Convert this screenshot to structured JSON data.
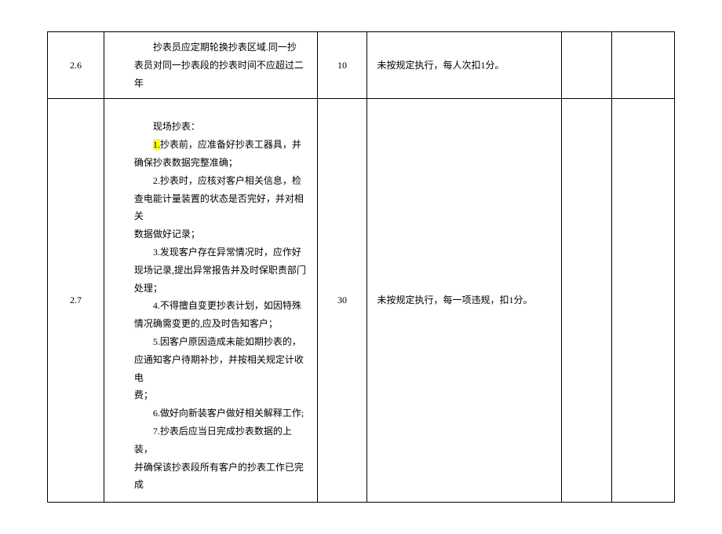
{
  "table": {
    "rows": [
      {
        "num": "2.6",
        "desc_lines": [
          "　　抄表员应定期轮换抄表区域.同一抄",
          "表员对同一抄表段的抄表时间不应超过二年"
        ],
        "score": "10",
        "rule": "未按规定执行，每人次扣1分。"
      },
      {
        "num": "2.7",
        "heading": "　　现场抄表：",
        "item1_prefix": "　　",
        "item1_highlight": "1.",
        "item1_rest": "抄表前，应准备好抄表工器具，并",
        "item1_line2": "确保抄表数据完整准确；",
        "item2_line1": "　　2.抄表时，应核对客户相关信息，检",
        "item2_line2": "查电能计量装置的状态是否完好，并对相关",
        "item2_line3": "数据做好记录；",
        "item3_line1": "　　3.发现客户存在异常情况时，应作好",
        "item3_line2": "现场记录,提出异常报告并及时保职责部门",
        "item3_line3": "处理；",
        "item4_line1": "　　4.不得擅自变更抄表计划，如因特殊",
        "item4_line2": "情况确需变更的,应及时告知客户；",
        "item5_line1": "　　5.因客户原因造成未能如期抄表的，",
        "item5_line2": "应通知客户待期补抄，并按相关规定计收电",
        "item5_line3": "费；",
        "item6_line1": "　　6.做好向新装客户做好相关解释工作;",
        "item7_line1": "　　7.抄表后应当日完成抄表数据的上装，",
        "item7_line2": "并确保该抄表段所有客户的抄表工作已完成",
        "score": "30",
        "rule": "未按规定执行，每一项违规，扣1分。"
      }
    ]
  }
}
